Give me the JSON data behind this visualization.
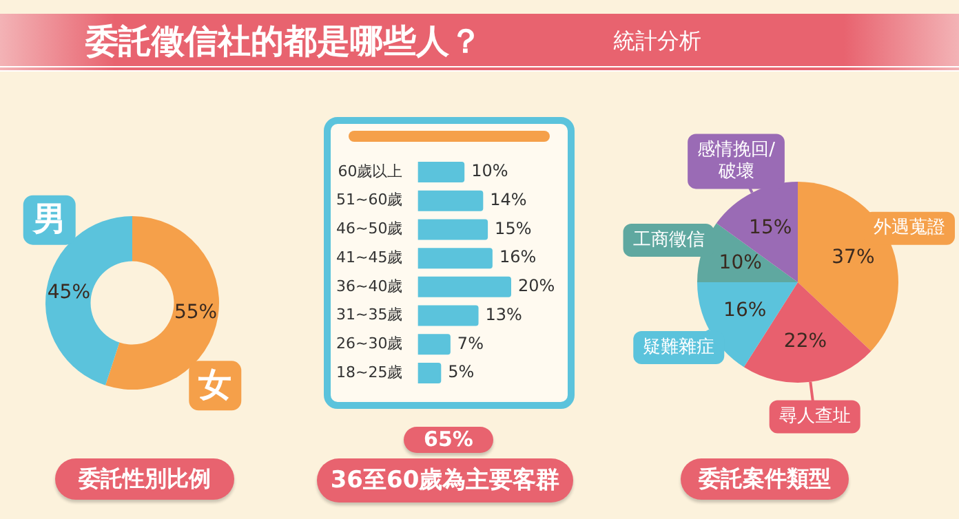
{
  "chart_data": [
    {
      "type": "donut",
      "title": "委託徵信社的都是哪些人？",
      "xlabel": "委託性別比例",
      "categories": [
        "女",
        "男"
      ],
      "values": [
        55,
        45
      ],
      "colors": [
        "#f5a04a",
        "#5bc3dc"
      ],
      "value_labels": [
        "55%",
        "45%"
      ]
    },
    {
      "type": "bar",
      "orientation": "horizontal",
      "xlabel": "36至60歲為主要客群",
      "annotations": [
        "65%"
      ],
      "categories": [
        "60歲以上",
        "51~60歲",
        "46~50歲",
        "41~45歲",
        "36~40歲",
        "31~35歲",
        "26~30歲",
        "18~25歲"
      ],
      "values": [
        10,
        14,
        15,
        16,
        20,
        13,
        7,
        5
      ],
      "color": "#5bc3dc",
      "value_labels": [
        "10%",
        "14%",
        "15%",
        "16%",
        "20%",
        "13%",
        "7%",
        "5%"
      ],
      "tick_labels": "y"
    },
    {
      "type": "pie",
      "subtitle": "統計分析",
      "xlabel": "委託案件類型",
      "categories": [
        "外遇蒐證",
        "尋人查址",
        "疑難雜症",
        "工商徵信",
        "感情挽回/破壞"
      ],
      "values": [
        37,
        22,
        16,
        10,
        15
      ],
      "colors": [
        "#f5a04a",
        "#e8606e",
        "#5bc3dc",
        "#5fa8a0",
        "#9a6bb5"
      ],
      "value_labels": [
        "37%",
        "22%",
        "16%",
        "10%",
        "15%"
      ]
    }
  ]
}
